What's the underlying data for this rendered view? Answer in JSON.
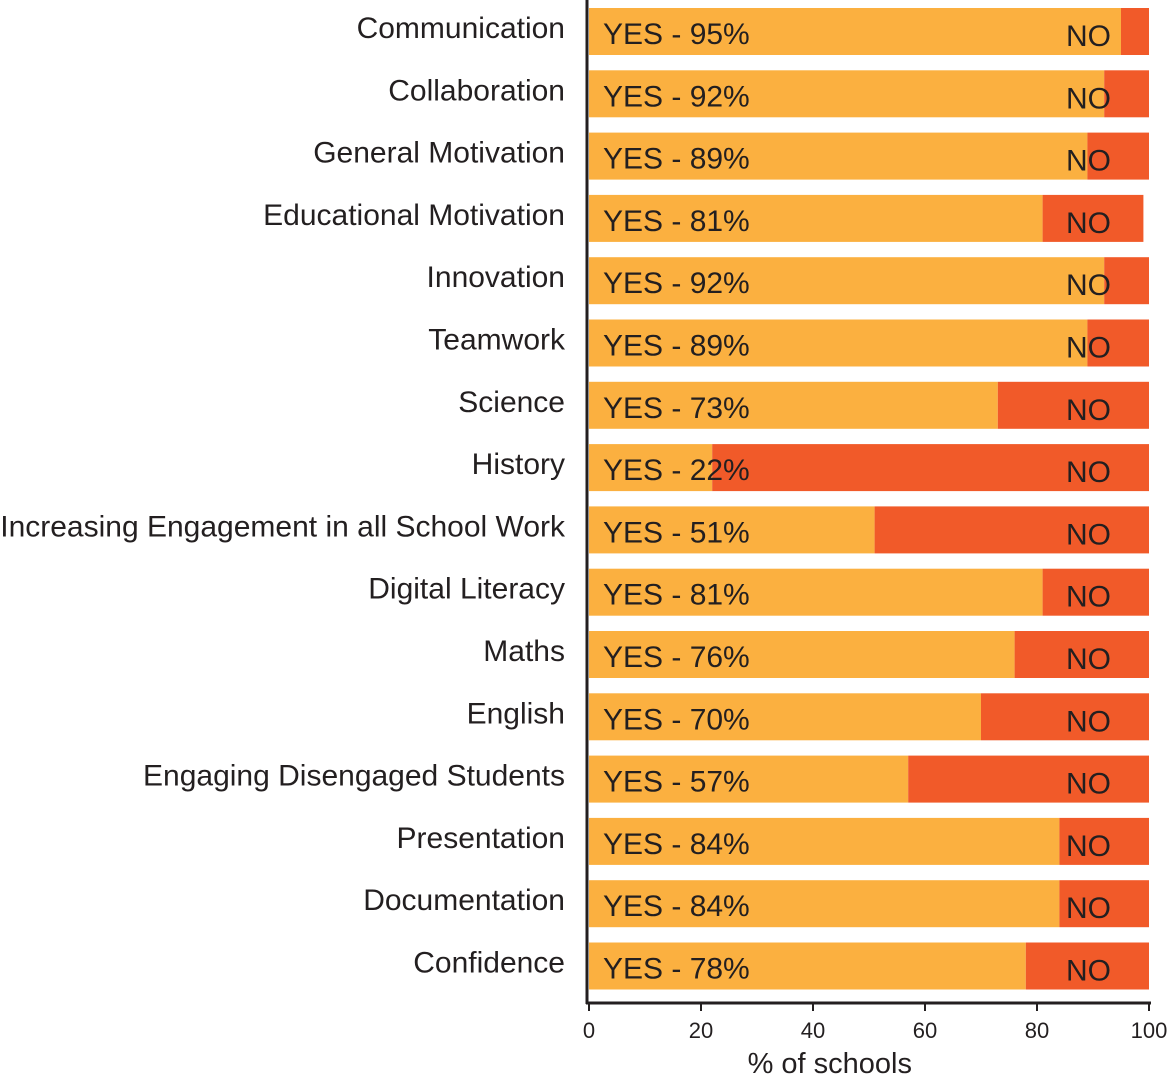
{
  "chart_data": {
    "type": "bar",
    "orientation": "horizontal",
    "stacked": true,
    "categories": [
      "Communication",
      "Collaboration",
      "General Motivation",
      "Educational Motivation",
      "Innovation",
      "Teamwork",
      "Science",
      "History",
      "Increasing Engagement in all School Work",
      "Digital Literacy",
      "Maths",
      "English",
      "Engaging Disengaged Students",
      "Presentation",
      "Documentation",
      "Confidence"
    ],
    "series": [
      {
        "name": "YES",
        "color": "#fbb040",
        "values": [
          95,
          92,
          89,
          81,
          92,
          89,
          73,
          22,
          51,
          81,
          76,
          70,
          57,
          84,
          84,
          78
        ]
      },
      {
        "name": "NO",
        "color": "#f15a29",
        "values": [
          5,
          8,
          11,
          18,
          8,
          11,
          27,
          78,
          49,
          19,
          24,
          30,
          43,
          16,
          16,
          22
        ]
      }
    ],
    "yes_labels": [
      "YES - 95%",
      "YES - 92%",
      "YES - 89%",
      "YES - 81%",
      "YES - 92%",
      "YES - 89%",
      "YES - 73%",
      "YES - 22%",
      "YES - 51%",
      "YES - 81%",
      "YES - 76%",
      "YES - 70%",
      "YES - 57%",
      "YES - 84%",
      "YES - 84%",
      "YES - 78%"
    ],
    "no_label": "NO",
    "xlabel": "% of schools",
    "ylabel": "",
    "title": "",
    "xlim": [
      0,
      100
    ],
    "xticks": [
      0,
      20,
      40,
      60,
      80,
      100
    ],
    "grid": false
  }
}
